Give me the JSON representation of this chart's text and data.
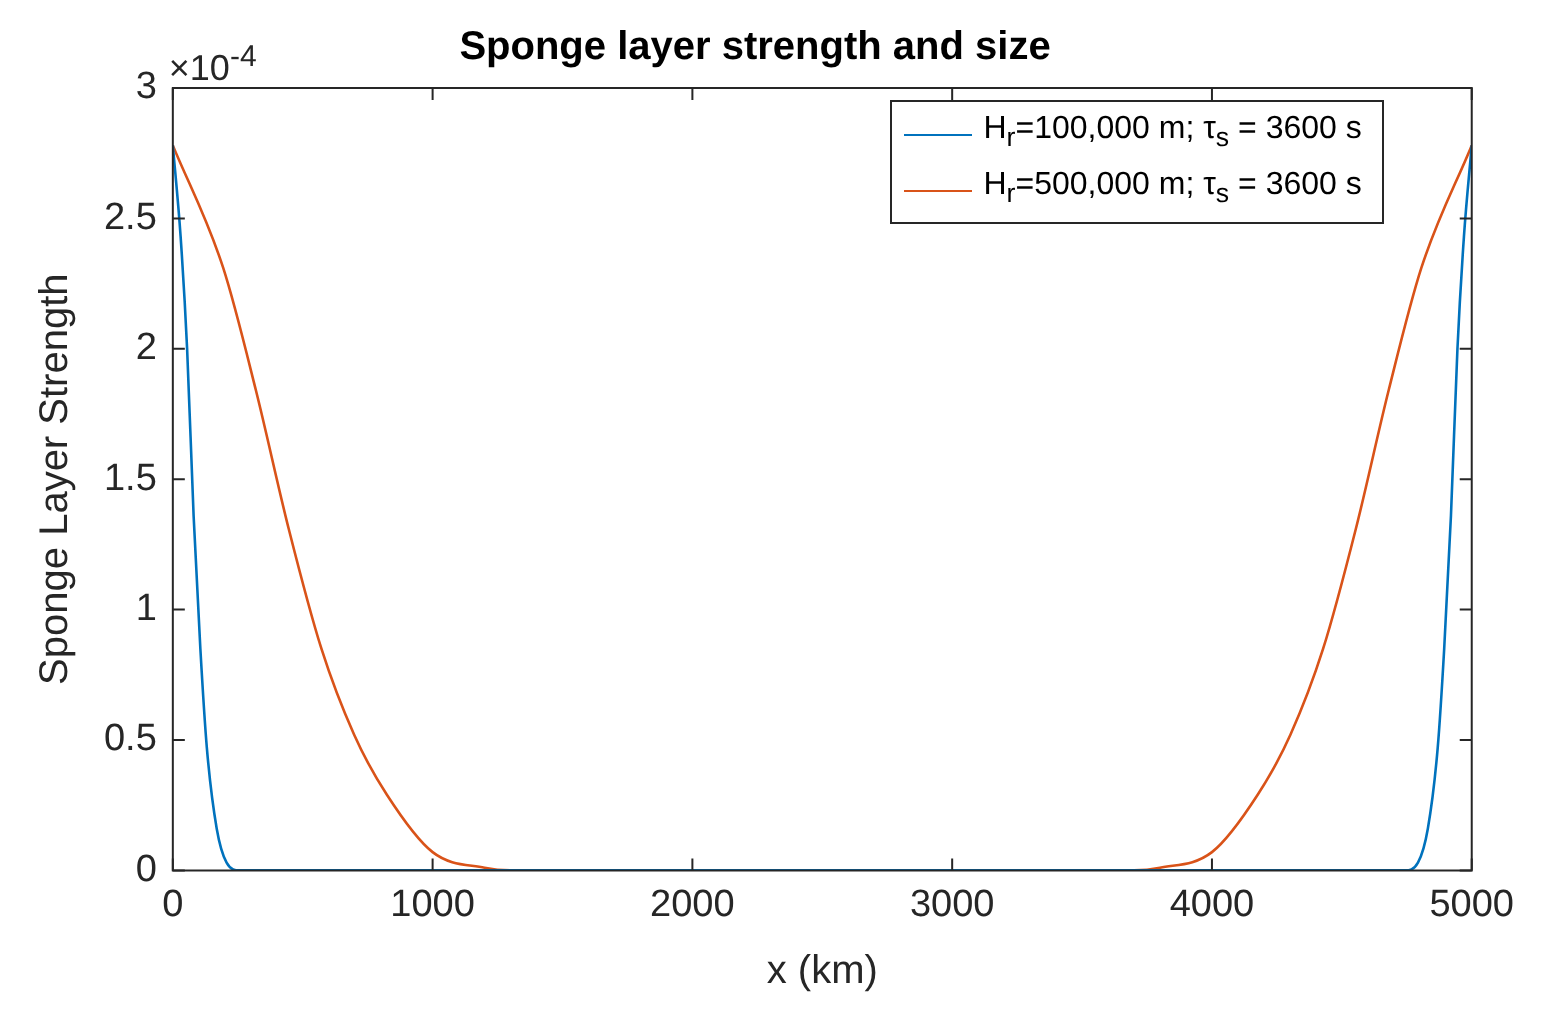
{
  "chart_data": {
    "type": "line",
    "title": "Sponge layer strength and size",
    "xlabel": "x (km)",
    "ylabel": "Sponge Layer Strength",
    "annotations": [
      "×10$^{-4}$"
    ],
    "xlim": [
      0,
      5000
    ],
    "xticks": [
      0,
      1000,
      2000,
      3000,
      4000,
      5000
    ],
    "ylim": [
      0,
      3
    ],
    "yticks": [
      0,
      0.5,
      1,
      1.5,
      2,
      2.5,
      3
    ],
    "grid": false,
    "legend": "top right",
    "marker": "none",
    "line_style": "solid",
    "series": [
      {
        "name": "H$_{r}$=100,000 m; τ$_{s}$ = 3600 s",
        "color": "#0072bd",
        "x": [
          0,
          30,
          55,
          80,
          106,
          131,
          169,
          207,
          257,
          4743,
          4793,
          4831,
          4869,
          4894,
          4920,
          4945,
          4970,
          5000
        ],
        "values": [
          2.78,
          2.43,
          2.0,
          1.36,
          0.85,
          0.47,
          0.16,
          0.03,
          0,
          0,
          0.03,
          0.16,
          0.47,
          0.85,
          1.36,
          2.0,
          2.43,
          2.78
        ]
      },
      {
        "name": "H$_{r}$=500,000 m; τ$_{s}$ = 3600 s",
        "color": "#d95319",
        "x": [
          0,
          194,
          320,
          446,
          572,
          698,
          824,
          1000,
          1200,
          1300,
          3700,
          3800,
          4000,
          4176,
          4302,
          4428,
          4554,
          4680,
          4806,
          5000
        ],
        "values": [
          2.78,
          2.31,
          1.84,
          1.31,
          0.85,
          0.52,
          0.29,
          0.07,
          0.01,
          0,
          0,
          0.01,
          0.07,
          0.29,
          0.52,
          0.85,
          1.31,
          1.84,
          2.31,
          2.78
        ]
      }
    ]
  }
}
